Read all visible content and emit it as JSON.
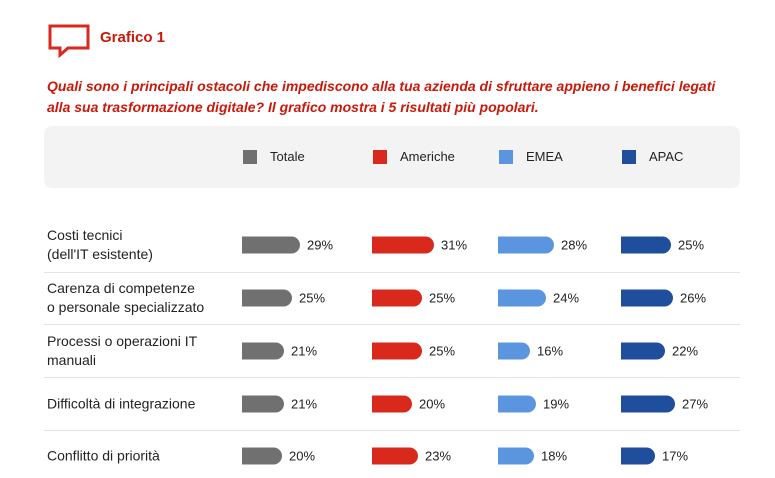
{
  "chart_data": {
    "type": "bar",
    "title": "Grafico 1",
    "subtitle": "Quali sono i principali ostacoli che impediscono alla tua azienda di sfruttare appieno i benefici legati alla sua trasformazione digitale? Il grafico mostra i 5 risultati più popolari.",
    "categories": [
      "Costi tecnici\n(dell'IT esistente)",
      "Carenza di competenze\no personale specializzato",
      "Processi o operazioni IT\nmanuali",
      "Difficoltà di integrazione",
      "Conflitto di priorità"
    ],
    "series": [
      {
        "name": "Totale",
        "color": "#707070",
        "values": [
          29,
          25,
          21,
          21,
          20
        ],
        "value_labels": [
          "29%",
          "25%",
          "21%",
          "21%",
          "20%"
        ]
      },
      {
        "name": "Americhe",
        "color": "#d9291c",
        "values": [
          31,
          25,
          25,
          20,
          23
        ],
        "value_labels": [
          "31%",
          "25%",
          "25%",
          "20%",
          "23%"
        ]
      },
      {
        "name": "EMEA",
        "color": "#5b95df",
        "values": [
          28,
          24,
          16,
          19,
          18
        ],
        "value_labels": [
          "28%",
          "24%",
          "16%",
          "19%",
          "18%"
        ]
      },
      {
        "name": "APAC",
        "color": "#1f4e9c",
        "values": [
          25,
          26,
          22,
          27,
          17
        ],
        "value_labels": [
          "25%",
          "26%",
          "22%",
          "27%",
          "17%"
        ]
      }
    ]
  }
}
